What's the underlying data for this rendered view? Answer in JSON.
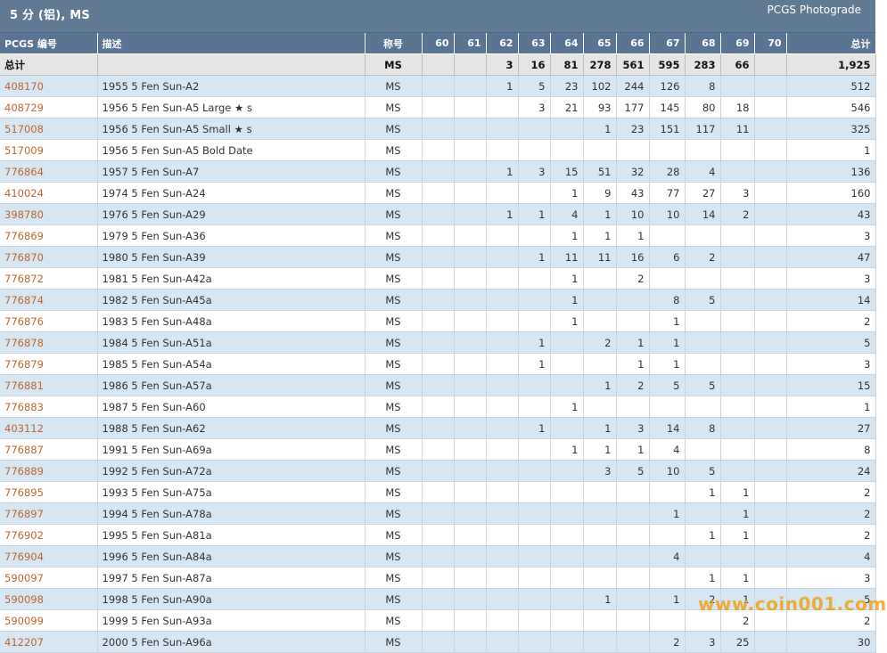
{
  "header": {
    "title": "5 分 (铝), MS",
    "brand": "PCGS Photograde"
  },
  "columns": [
    "PCGS 编号",
    "描述",
    "称号",
    "60",
    "61",
    "62",
    "63",
    "64",
    "65",
    "66",
    "67",
    "68",
    "69",
    "70",
    "总计"
  ],
  "total_row": [
    "总计",
    "",
    "MS",
    "",
    "",
    "3",
    "16",
    "81",
    "278",
    "561",
    "595",
    "283",
    "66",
    "",
    "1,925"
  ],
  "rows": [
    [
      "408170",
      "1955 5 Fen Sun-A2",
      "MS",
      "",
      "",
      "1",
      "5",
      "23",
      "102",
      "244",
      "126",
      "8",
      "",
      "",
      "512"
    ],
    [
      "408729",
      "1956 5 Fen Sun-A5 Large ★ s",
      "MS",
      "",
      "",
      "",
      "3",
      "21",
      "93",
      "177",
      "145",
      "80",
      "18",
      "",
      "546"
    ],
    [
      "517008",
      "1956 5 Fen Sun-A5 Small ★ s",
      "MS",
      "",
      "",
      "",
      "",
      "",
      "1",
      "23",
      "151",
      "117",
      "11",
      "",
      "325"
    ],
    [
      "517009",
      "1956 5 Fen Sun-A5 Bold Date",
      "MS",
      "",
      "",
      "",
      "",
      "",
      "",
      "",
      "",
      "",
      "",
      "",
      "1"
    ],
    [
      "776864",
      "1957 5 Fen Sun-A7",
      "MS",
      "",
      "",
      "1",
      "3",
      "15",
      "51",
      "32",
      "28",
      "4",
      "",
      "",
      "136"
    ],
    [
      "410024",
      "1974 5 Fen Sun-A24",
      "MS",
      "",
      "",
      "",
      "",
      "1",
      "9",
      "43",
      "77",
      "27",
      "3",
      "",
      "160"
    ],
    [
      "398780",
      "1976 5 Fen Sun-A29",
      "MS",
      "",
      "",
      "1",
      "1",
      "4",
      "1",
      "10",
      "10",
      "14",
      "2",
      "",
      "43"
    ],
    [
      "776869",
      "1979 5 Fen Sun-A36",
      "MS",
      "",
      "",
      "",
      "",
      "1",
      "1",
      "1",
      "",
      "",
      "",
      "",
      "3"
    ],
    [
      "776870",
      "1980 5 Fen Sun-A39",
      "MS",
      "",
      "",
      "",
      "1",
      "11",
      "11",
      "16",
      "6",
      "2",
      "",
      "",
      "47"
    ],
    [
      "776872",
      "1981 5 Fen Sun-A42a",
      "MS",
      "",
      "",
      "",
      "",
      "1",
      "",
      "2",
      "",
      "",
      "",
      "",
      "3"
    ],
    [
      "776874",
      "1982 5 Fen Sun-A45a",
      "MS",
      "",
      "",
      "",
      "",
      "1",
      "",
      "",
      "8",
      "5",
      "",
      "",
      "14"
    ],
    [
      "776876",
      "1983 5 Fen Sun-A48a",
      "MS",
      "",
      "",
      "",
      "",
      "1",
      "",
      "",
      "1",
      "",
      "",
      "",
      "2"
    ],
    [
      "776878",
      "1984 5 Fen Sun-A51a",
      "MS",
      "",
      "",
      "",
      "1",
      "",
      "2",
      "1",
      "1",
      "",
      "",
      "",
      "5"
    ],
    [
      "776879",
      "1985 5 Fen Sun-A54a",
      "MS",
      "",
      "",
      "",
      "1",
      "",
      "",
      "1",
      "1",
      "",
      "",
      "",
      "3"
    ],
    [
      "776881",
      "1986 5 Fen Sun-A57a",
      "MS",
      "",
      "",
      "",
      "",
      "",
      "1",
      "2",
      "5",
      "5",
      "",
      "",
      "15"
    ],
    [
      "776883",
      "1987 5 Fen Sun-A60",
      "MS",
      "",
      "",
      "",
      "",
      "1",
      "",
      "",
      "",
      "",
      "",
      "",
      "1"
    ],
    [
      "403112",
      "1988 5 Fen Sun-A62",
      "MS",
      "",
      "",
      "",
      "1",
      "",
      "1",
      "3",
      "14",
      "8",
      "",
      "",
      "27"
    ],
    [
      "776887",
      "1991 5 Fen Sun-A69a",
      "MS",
      "",
      "",
      "",
      "",
      "1",
      "1",
      "1",
      "4",
      "",
      "",
      "",
      "8"
    ],
    [
      "776889",
      "1992 5 Fen Sun-A72a",
      "MS",
      "",
      "",
      "",
      "",
      "",
      "3",
      "5",
      "10",
      "5",
      "",
      "",
      "24"
    ],
    [
      "776895",
      "1993 5 Fen Sun-A75a",
      "MS",
      "",
      "",
      "",
      "",
      "",
      "",
      "",
      "",
      "1",
      "1",
      "",
      "2"
    ],
    [
      "776897",
      "1994 5 Fen Sun-A78a",
      "MS",
      "",
      "",
      "",
      "",
      "",
      "",
      "",
      "1",
      "",
      "1",
      "",
      "2"
    ],
    [
      "776902",
      "1995 5 Fen Sun-A81a",
      "MS",
      "",
      "",
      "",
      "",
      "",
      "",
      "",
      "",
      "1",
      "1",
      "",
      "2"
    ],
    [
      "776904",
      "1996 5 Fen Sun-A84a",
      "MS",
      "",
      "",
      "",
      "",
      "",
      "",
      "",
      "4",
      "",
      "",
      "",
      "4"
    ],
    [
      "590097",
      "1997 5 Fen Sun-A87a",
      "MS",
      "",
      "",
      "",
      "",
      "",
      "",
      "",
      "",
      "1",
      "1",
      "",
      "3"
    ],
    [
      "590098",
      "1998 5 Fen Sun-A90a",
      "MS",
      "",
      "",
      "",
      "",
      "",
      "1",
      "",
      "1",
      "2",
      "1",
      "",
      "5"
    ],
    [
      "590099",
      "1999 5 Fen Sun-A93a",
      "MS",
      "",
      "",
      "",
      "",
      "",
      "",
      "",
      "",
      "",
      "2",
      "",
      "2"
    ],
    [
      "412207",
      "2000 5 Fen Sun-A96a",
      "MS",
      "",
      "",
      "",
      "",
      "",
      "",
      "",
      "2",
      "3",
      "25",
      "",
      "30"
    ]
  ],
  "watermark": "www.coin001.com",
  "colors": {
    "header_bg": "#5a7494",
    "row_alt": "#d7e6f3",
    "link": "#c0662f",
    "total_bg": "#e5e5e5"
  }
}
